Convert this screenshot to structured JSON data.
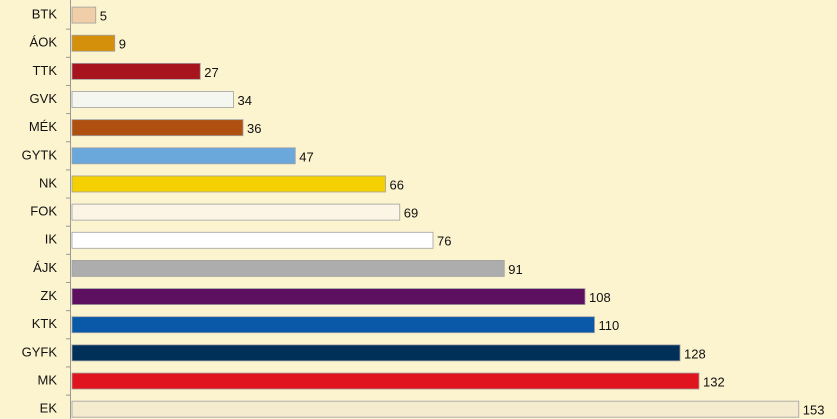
{
  "chart_data": {
    "type": "barh",
    "categories": [
      "BTK",
      "ÁOK",
      "TTK",
      "GVK",
      "MÉK",
      "GYTK",
      "NK",
      "FOK",
      "IK",
      "ÁJK",
      "ZK",
      "KTK",
      "GYFK",
      "MK",
      "EK"
    ],
    "values": [
      5,
      9,
      27,
      34,
      36,
      47,
      66,
      69,
      76,
      91,
      108,
      110,
      128,
      132,
      153
    ],
    "colors": [
      "#f0cfa8",
      "#d4900a",
      "#a8141e",
      "#f4f7f0",
      "#b05010",
      "#6aa8dc",
      "#f5d000",
      "#fcf4e4",
      "#ffffff",
      "#adadad",
      "#5e1060",
      "#0a58a8",
      "#003058",
      "#e0141e",
      "#f5ecd0"
    ],
    "xlim": [
      0,
      160
    ]
  }
}
